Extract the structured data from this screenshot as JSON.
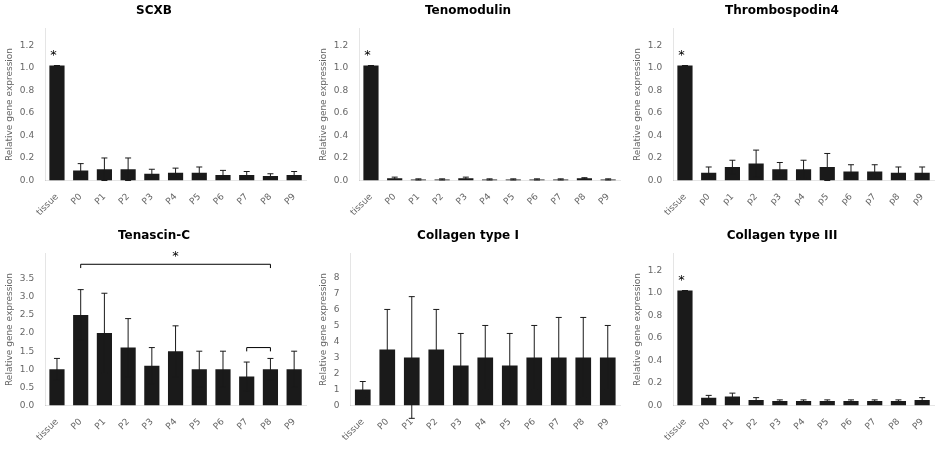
{
  "chart_data": [
    {
      "type": "bar",
      "title": "SCXB",
      "ylabel": "Relative gene expression",
      "color": "#1a1a1a",
      "grid": false,
      "categories": [
        "tissue",
        "P0",
        "P1",
        "P2",
        "P3",
        "P4",
        "P5",
        "P6",
        "P7",
        "P8",
        "P9"
      ],
      "values": [
        1.02,
        0.09,
        0.1,
        0.1,
        0.06,
        0.07,
        0.07,
        0.05,
        0.05,
        0.04,
        0.05
      ],
      "errors": [
        0.0,
        0.06,
        0.1,
        0.1,
        0.04,
        0.04,
        0.05,
        0.04,
        0.03,
        0.02,
        0.03
      ],
      "ylim": [
        0,
        1.35
      ],
      "yticks": [
        {
          "value": 0,
          "label": "0.0"
        },
        0.2,
        0.4,
        0.6,
        0.8,
        {
          "value": 1,
          "label": "1.0"
        },
        1.2
      ],
      "annotations": [
        {
          "text": "*",
          "x": "tissue"
        }
      ]
    },
    {
      "type": "bar",
      "title": "Tenomodulin",
      "ylabel": "Relative gene expression",
      "color": "#1a1a1a",
      "grid": false,
      "categories": [
        "tissue",
        "P0",
        "P1",
        "P2",
        "P3",
        "P4",
        "P5",
        "P6",
        "P7",
        "P8",
        "P9"
      ],
      "values": [
        1.02,
        0.02,
        0.01,
        0.01,
        0.02,
        0.01,
        0.01,
        0.01,
        0.01,
        0.02,
        0.01
      ],
      "errors": [
        0.0,
        0.01,
        0.005,
        0.005,
        0.01,
        0.005,
        0.005,
        0.005,
        0.005,
        0.005,
        0.005
      ],
      "ylim": [
        0,
        1.35
      ],
      "yticks": [
        {
          "value": 0,
          "label": "0.0"
        },
        0.2,
        0.4,
        0.6,
        0.8,
        {
          "value": 1,
          "label": "1.0"
        },
        1.2
      ],
      "annotations": [
        {
          "text": "*",
          "x": "tissue"
        }
      ]
    },
    {
      "type": "bar",
      "title": "Thrombospodin4",
      "ylabel": "Relative gene expression",
      "color": "#1a1a1a",
      "grid": false,
      "categories": [
        "tissue",
        "p0",
        "p1",
        "p2",
        "p3",
        "p4",
        "p5",
        "p6",
        "p7",
        "p8",
        "p9"
      ],
      "values": [
        1.02,
        0.07,
        0.12,
        0.15,
        0.1,
        0.1,
        0.12,
        0.08,
        0.08,
        0.07,
        0.07
      ],
      "errors": [
        0.0,
        0.05,
        0.06,
        0.12,
        0.06,
        0.08,
        0.12,
        0.06,
        0.06,
        0.05,
        0.05
      ],
      "ylim": [
        0,
        1.35
      ],
      "yticks": [
        {
          "value": 0,
          "label": "0.0"
        },
        0.2,
        0.4,
        0.6,
        0.8,
        {
          "value": 1,
          "label": "1.0"
        },
        1.2
      ],
      "annotations": [
        {
          "text": "*",
          "x": "tissue"
        }
      ]
    },
    {
      "type": "bar",
      "title": "Tenascin-C",
      "ylabel": "Relative gene expression",
      "color": "#1a1a1a",
      "grid": false,
      "categories": [
        "tissue",
        "P0",
        "P1",
        "P2",
        "P3",
        "P4",
        "P5",
        "P6",
        "P7",
        "P8",
        "P9"
      ],
      "values": [
        1.0,
        2.5,
        2.0,
        1.6,
        1.1,
        1.5,
        1.0,
        1.0,
        0.8,
        1.0,
        1.0
      ],
      "errors": [
        0.3,
        0.7,
        1.1,
        0.8,
        0.5,
        0.7,
        0.5,
        0.5,
        0.4,
        0.3,
        0.5
      ],
      "ylim": [
        0,
        4.2
      ],
      "yticks": [
        {
          "value": 0,
          "label": "0.0"
        },
        0.5,
        {
          "value": 1,
          "label": "1.0"
        },
        1.5,
        {
          "value": 2,
          "label": "2.0"
        },
        2.5,
        {
          "value": 3,
          "label": "3.0"
        },
        3.5
      ],
      "annotations": [
        {
          "text": "*",
          "x": [
            "P0",
            "P8"
          ],
          "y": 3.9
        },
        {
          "x": [
            "P7",
            "P8"
          ],
          "y": 1.6
        }
      ]
    },
    {
      "type": "bar",
      "title": "Collagen type I",
      "ylabel": "Relative gene expression",
      "color": "#1a1a1a",
      "grid": false,
      "categories": [
        "tissue",
        "P0",
        "P1",
        "P2",
        "P3",
        "P4",
        "P5",
        "P6",
        "P7",
        "P8",
        "P9"
      ],
      "values": [
        1.0,
        3.5,
        3.0,
        3.5,
        2.5,
        3.0,
        2.5,
        3.0,
        3.0,
        3.0,
        3.0
      ],
      "errors": [
        0.5,
        2.5,
        3.8,
        2.5,
        2.0,
        2.0,
        2.0,
        2.0,
        2.5,
        2.5,
        2.0
      ],
      "ylim": [
        0,
        9.5
      ],
      "yticks": [
        0,
        1,
        2,
        3,
        4,
        5,
        6,
        7,
        8
      ]
    },
    {
      "type": "bar",
      "title": "Collagen type III",
      "ylabel": "Relative gene expression",
      "color": "#1a1a1a",
      "grid": false,
      "categories": [
        "tissue",
        "P0",
        "P1",
        "P2",
        "P3",
        "P4",
        "P5",
        "P6",
        "P7",
        "P8",
        "P9"
      ],
      "values": [
        1.02,
        0.07,
        0.08,
        0.05,
        0.04,
        0.04,
        0.04,
        0.04,
        0.04,
        0.04,
        0.05
      ],
      "errors": [
        0.0,
        0.02,
        0.03,
        0.02,
        0.01,
        0.01,
        0.01,
        0.01,
        0.01,
        0.01,
        0.02
      ],
      "ylim": [
        0,
        1.35
      ],
      "yticks": [
        {
          "value": 0,
          "label": "0.0"
        },
        0.2,
        0.4,
        0.6,
        0.8,
        {
          "value": 1,
          "label": "1.0"
        },
        1.2
      ],
      "annotations": [
        {
          "text": "*",
          "x": "tissue"
        }
      ]
    }
  ]
}
